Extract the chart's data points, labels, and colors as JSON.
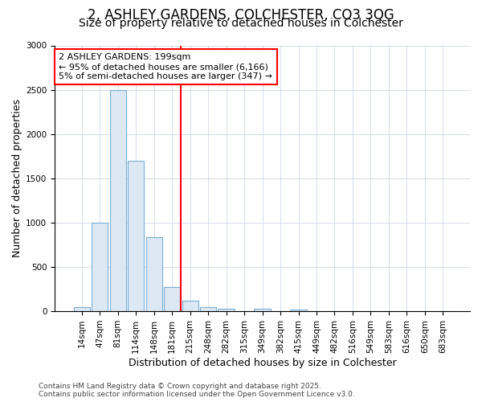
{
  "title_line1": "2, ASHLEY GARDENS, COLCHESTER, CO3 3QG",
  "title_line2": "Size of property relative to detached houses in Colchester",
  "xlabel": "Distribution of detached houses by size in Colchester",
  "ylabel": "Number of detached properties",
  "categories": [
    "14sqm",
    "47sqm",
    "81sqm",
    "114sqm",
    "148sqm",
    "181sqm",
    "215sqm",
    "248sqm",
    "282sqm",
    "315sqm",
    "349sqm",
    "382sqm",
    "415sqm",
    "449sqm",
    "482sqm",
    "516sqm",
    "549sqm",
    "583sqm",
    "616sqm",
    "650sqm",
    "683sqm"
  ],
  "values": [
    50,
    1000,
    2500,
    1700,
    840,
    270,
    120,
    50,
    30,
    0,
    30,
    0,
    15,
    0,
    0,
    0,
    0,
    0,
    0,
    0,
    0
  ],
  "bar_color": "#dce9f5",
  "bar_edge_color": "#7aafd4",
  "vline_x": 5.5,
  "vline_color": "red",
  "annotation_text": "2 ASHLEY GARDENS: 199sqm\n← 95% of detached houses are smaller (6,166)\n5% of semi-detached houses are larger (347) →",
  "annotation_box_color": "white",
  "annotation_box_edge": "red",
  "ylim": [
    0,
    3000
  ],
  "yticks": [
    0,
    500,
    1000,
    1500,
    2000,
    2500,
    3000
  ],
  "footer_line1": "Contains HM Land Registry data © Crown copyright and database right 2025.",
  "footer_line2": "Contains public sector information licensed under the Open Government Licence v3.0.",
  "bg_color": "#ffffff",
  "plot_bg_color": "#ffffff",
  "title_fontsize": 12,
  "subtitle_fontsize": 10,
  "axis_label_fontsize": 9,
  "tick_fontsize": 7.5,
  "annotation_fontsize": 8,
  "footer_fontsize": 6.5,
  "grid_color": "#d0d8e8"
}
